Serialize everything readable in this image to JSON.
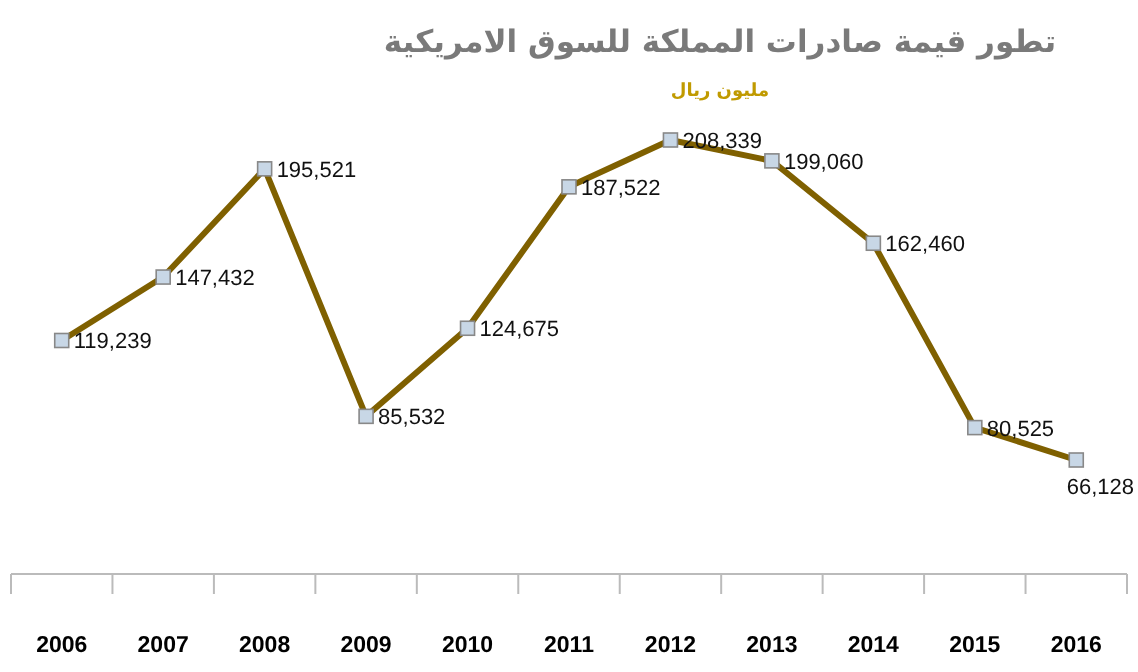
{
  "chart_data": {
    "type": "line",
    "title": "تطور قيمة صادرات المملكة للسوق الامريكية",
    "subtitle": "مليون ريال",
    "categories": [
      "2006",
      "2007",
      "2008",
      "2009",
      "2010",
      "2011",
      "2012",
      "2013",
      "2014",
      "2015",
      "2016"
    ],
    "series": [
      {
        "color": "#7f6000",
        "values": [
          119239,
          147432,
          195521,
          85532,
          124675,
          187522,
          208339,
          199060,
          162460,
          80525,
          66128
        ],
        "value_labels": [
          "119,239",
          "147,432",
          "195,521",
          "85,532",
          "124,675",
          "187,522",
          "208,339",
          "199,060",
          "162,460",
          "80,525",
          "66,128"
        ]
      }
    ],
    "marker": "square",
    "line_style": "solid",
    "grid": false
  }
}
